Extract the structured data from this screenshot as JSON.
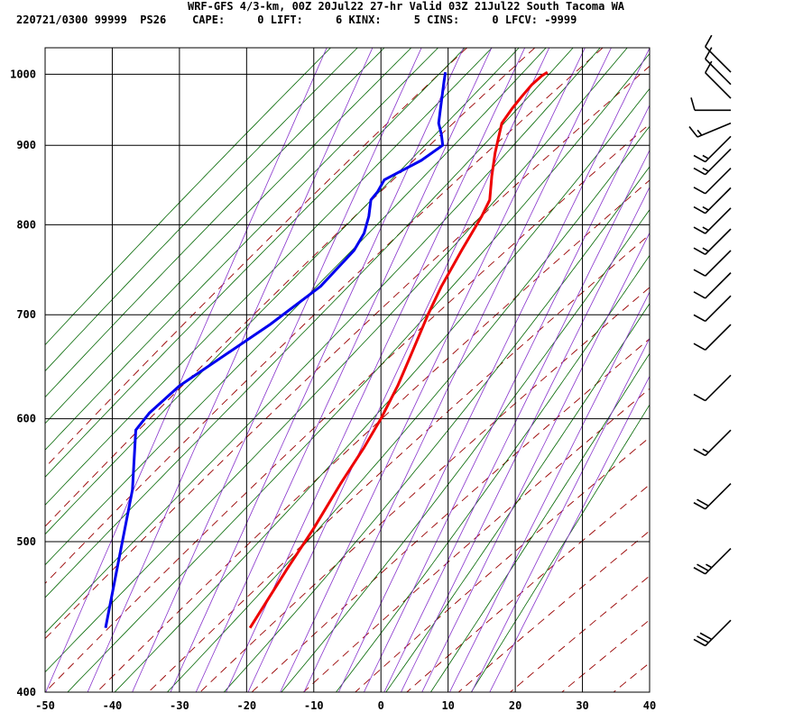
{
  "header": {
    "line1": "WRF-GFS 4/3-km, 00Z 20Jul22 27-hr Valid 03Z 21Jul22 South Tacoma WA",
    "line2": "220721/0300 99999  PS26    CAPE:     0 LIFT:     6 KINX:     5 CINS:     0 LFCV: -9999"
  },
  "chart_data": {
    "type": "line",
    "title": "WRF-GFS 4/3-km, 00Z 20Jul22 27-hr Valid 03Z 21Jul22 South Tacoma WA",
    "xlabel": "",
    "ylabel": "",
    "x_range": [
      -50,
      40
    ],
    "y_range": [
      1040,
      400
    ],
    "y_scale": "log",
    "x_ticks": [
      "-50",
      "-40",
      "-30",
      "-20",
      "-10",
      "0",
      "10",
      "20",
      "30",
      "40"
    ],
    "y_ticks": [
      "400",
      "500",
      "600",
      "700",
      "800",
      "900",
      "1000"
    ],
    "grid": true,
    "series": [
      {
        "color": "#ee0000",
        "points": [
          [
            24.8,
            1003
          ],
          [
            24.0,
            998
          ],
          [
            22.5,
            985
          ],
          [
            21.0,
            968
          ],
          [
            19.5,
            950
          ],
          [
            18.0,
            930
          ],
          [
            17.5,
            910
          ],
          [
            17.0,
            890
          ],
          [
            16.5,
            860
          ],
          [
            16.2,
            830
          ],
          [
            15.0,
            810
          ],
          [
            12.0,
            770
          ],
          [
            9.0,
            730
          ],
          [
            7.0,
            700
          ],
          [
            4.5,
            660
          ],
          [
            2.5,
            630
          ],
          [
            0.0,
            600
          ],
          [
            -2.5,
            575
          ],
          [
            -6.0,
            545
          ],
          [
            -10.0,
            510
          ],
          [
            -14.0,
            480
          ],
          [
            -19.5,
            440
          ]
        ]
      },
      {
        "color": "#0000ee",
        "points": [
          [
            9.6,
            1003
          ],
          [
            9.4,
            990
          ],
          [
            9.2,
            975
          ],
          [
            9.0,
            960
          ],
          [
            8.8,
            945
          ],
          [
            8.6,
            930
          ],
          [
            9.0,
            915
          ],
          [
            9.2,
            900
          ],
          [
            6.0,
            880
          ],
          [
            0.5,
            855
          ],
          [
            -0.5,
            840
          ],
          [
            -1.5,
            830
          ],
          [
            -1.8,
            810
          ],
          [
            -2.5,
            790
          ],
          [
            -4.0,
            770
          ],
          [
            -9.0,
            730
          ],
          [
            -16.5,
            690
          ],
          [
            -30.0,
            630
          ],
          [
            -34.5,
            605
          ],
          [
            -36.5,
            590
          ],
          [
            -36.8,
            560
          ],
          [
            -37.0,
            540
          ],
          [
            -38.5,
            500
          ],
          [
            -41.0,
            440
          ]
        ]
      }
    ],
    "wind_barbs": [
      {
        "pressure": 1003,
        "speed": 10,
        "direction": "NW"
      },
      {
        "pressure": 985,
        "speed": 10,
        "direction": "NW"
      },
      {
        "pressure": 965,
        "speed": 10,
        "direction": "NW"
      },
      {
        "pressure": 948,
        "speed": 10,
        "direction": "W"
      },
      {
        "pressure": 930,
        "speed": 15,
        "direction": "WSW"
      },
      {
        "pressure": 912,
        "speed": 15,
        "direction": "SW"
      },
      {
        "pressure": 895,
        "speed": 15,
        "direction": "SW"
      },
      {
        "pressure": 870,
        "speed": 10,
        "direction": "SW"
      },
      {
        "pressure": 845,
        "speed": 15,
        "direction": "SW"
      },
      {
        "pressure": 820,
        "speed": 15,
        "direction": "SW"
      },
      {
        "pressure": 795,
        "speed": 15,
        "direction": "SW"
      },
      {
        "pressure": 770,
        "speed": 10,
        "direction": "SW"
      },
      {
        "pressure": 745,
        "speed": 10,
        "direction": "SW"
      },
      {
        "pressure": 720,
        "speed": 10,
        "direction": "SW"
      },
      {
        "pressure": 690,
        "speed": 10,
        "direction": "SW"
      },
      {
        "pressure": 640,
        "speed": 10,
        "direction": "SW"
      },
      {
        "pressure": 590,
        "speed": 15,
        "direction": "SW"
      },
      {
        "pressure": 545,
        "speed": 20,
        "direction": "SW"
      },
      {
        "pressure": 495,
        "speed": 25,
        "direction": "SW"
      },
      {
        "pressure": 445,
        "speed": 30,
        "direction": "SW"
      }
    ],
    "colors": {
      "temperature": "#ee0000",
      "dewpoint": "#0000ee",
      "dry_adiabat": "#990000",
      "moist_adiabat": "#006600",
      "mixing_ratio": "#8833cc",
      "grid": "#000000"
    }
  }
}
